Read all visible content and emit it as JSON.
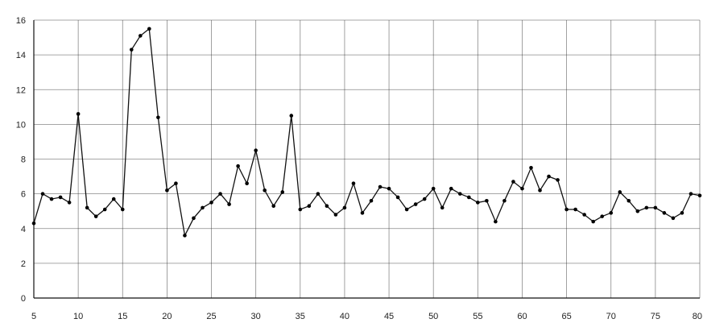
{
  "chart_data": {
    "type": "line",
    "title": "",
    "xlabel": "",
    "ylabel": "",
    "xlim": [
      5,
      80
    ],
    "ylim": [
      0,
      16
    ],
    "x_ticks": [
      5,
      10,
      15,
      20,
      25,
      30,
      35,
      40,
      45,
      50,
      55,
      60,
      65,
      70,
      75,
      80
    ],
    "y_ticks": [
      0,
      2,
      4,
      6,
      8,
      10,
      12,
      14,
      16
    ],
    "grid": true,
    "legend": "none",
    "series": [
      {
        "x": [
          5,
          6,
          7,
          8,
          9,
          10,
          11,
          12,
          13,
          14,
          15,
          16,
          17,
          18,
          19,
          20,
          21,
          22,
          23,
          24,
          25,
          26,
          27,
          28,
          29,
          30,
          31,
          32,
          33,
          34,
          35,
          36,
          37,
          38,
          39,
          40,
          41,
          42,
          43,
          44,
          45,
          46,
          47,
          48,
          49,
          50,
          51,
          52,
          53,
          54,
          55,
          56,
          57,
          58,
          59,
          60,
          61,
          62,
          63,
          64,
          65,
          66,
          67,
          68,
          69,
          70,
          71,
          72,
          73,
          74,
          75,
          76,
          77,
          78,
          79,
          80
        ],
        "y": [
          4.3,
          6.0,
          5.7,
          5.8,
          5.5,
          10.6,
          5.2,
          4.7,
          5.1,
          5.7,
          5.1,
          14.3,
          15.1,
          15.5,
          10.4,
          6.2,
          6.6,
          3.6,
          4.6,
          5.2,
          5.5,
          6.0,
          5.4,
          7.6,
          6.6,
          8.5,
          6.2,
          5.3,
          6.1,
          10.5,
          5.1,
          5.3,
          6.0,
          5.3,
          4.8,
          5.2,
          6.6,
          4.9,
          5.6,
          6.4,
          6.3,
          5.8,
          5.1,
          5.4,
          5.7,
          6.3,
          5.2,
          6.3,
          6.0,
          5.8,
          5.5,
          5.6,
          4.4,
          5.6,
          6.7,
          6.3,
          7.5,
          6.2,
          7.0,
          6.8,
          5.1,
          5.1,
          4.8,
          4.4,
          4.7,
          4.9,
          6.1,
          5.6,
          5.0,
          5.2,
          5.2,
          4.9,
          4.6,
          4.9,
          6.0,
          5.9
        ]
      }
    ]
  }
}
